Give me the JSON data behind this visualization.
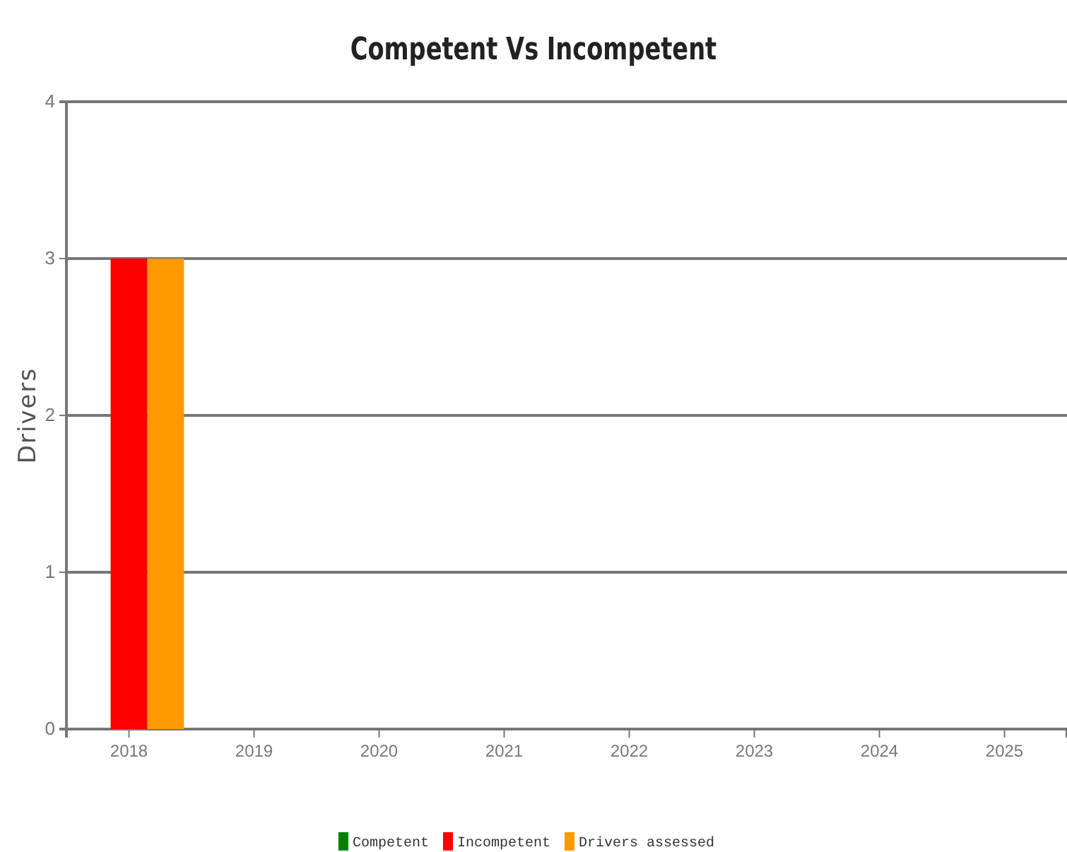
{
  "chart_data": {
    "type": "bar",
    "title": "Competent Vs Incompetent",
    "ylabel": "Drivers",
    "categories": [
      "2018",
      "2019",
      "2020",
      "2021",
      "2022",
      "2023",
      "2024",
      "2025"
    ],
    "series": [
      {
        "name": "Competent",
        "color": "#008000",
        "values": [
          0,
          0,
          0,
          0,
          0,
          0,
          0,
          0
        ]
      },
      {
        "name": "Incompetent",
        "color": "#ff0000",
        "values": [
          3,
          0,
          0,
          0,
          0,
          0,
          0,
          0
        ]
      },
      {
        "name": "Drivers assessed",
        "color": "#ff9900",
        "values": [
          3,
          0,
          0,
          0,
          0,
          0,
          0,
          0
        ]
      }
    ],
    "ylim": [
      0,
      4
    ],
    "yticks": [
      0,
      1,
      2,
      3,
      4
    ],
    "grid": "y",
    "legend": "bottom"
  }
}
